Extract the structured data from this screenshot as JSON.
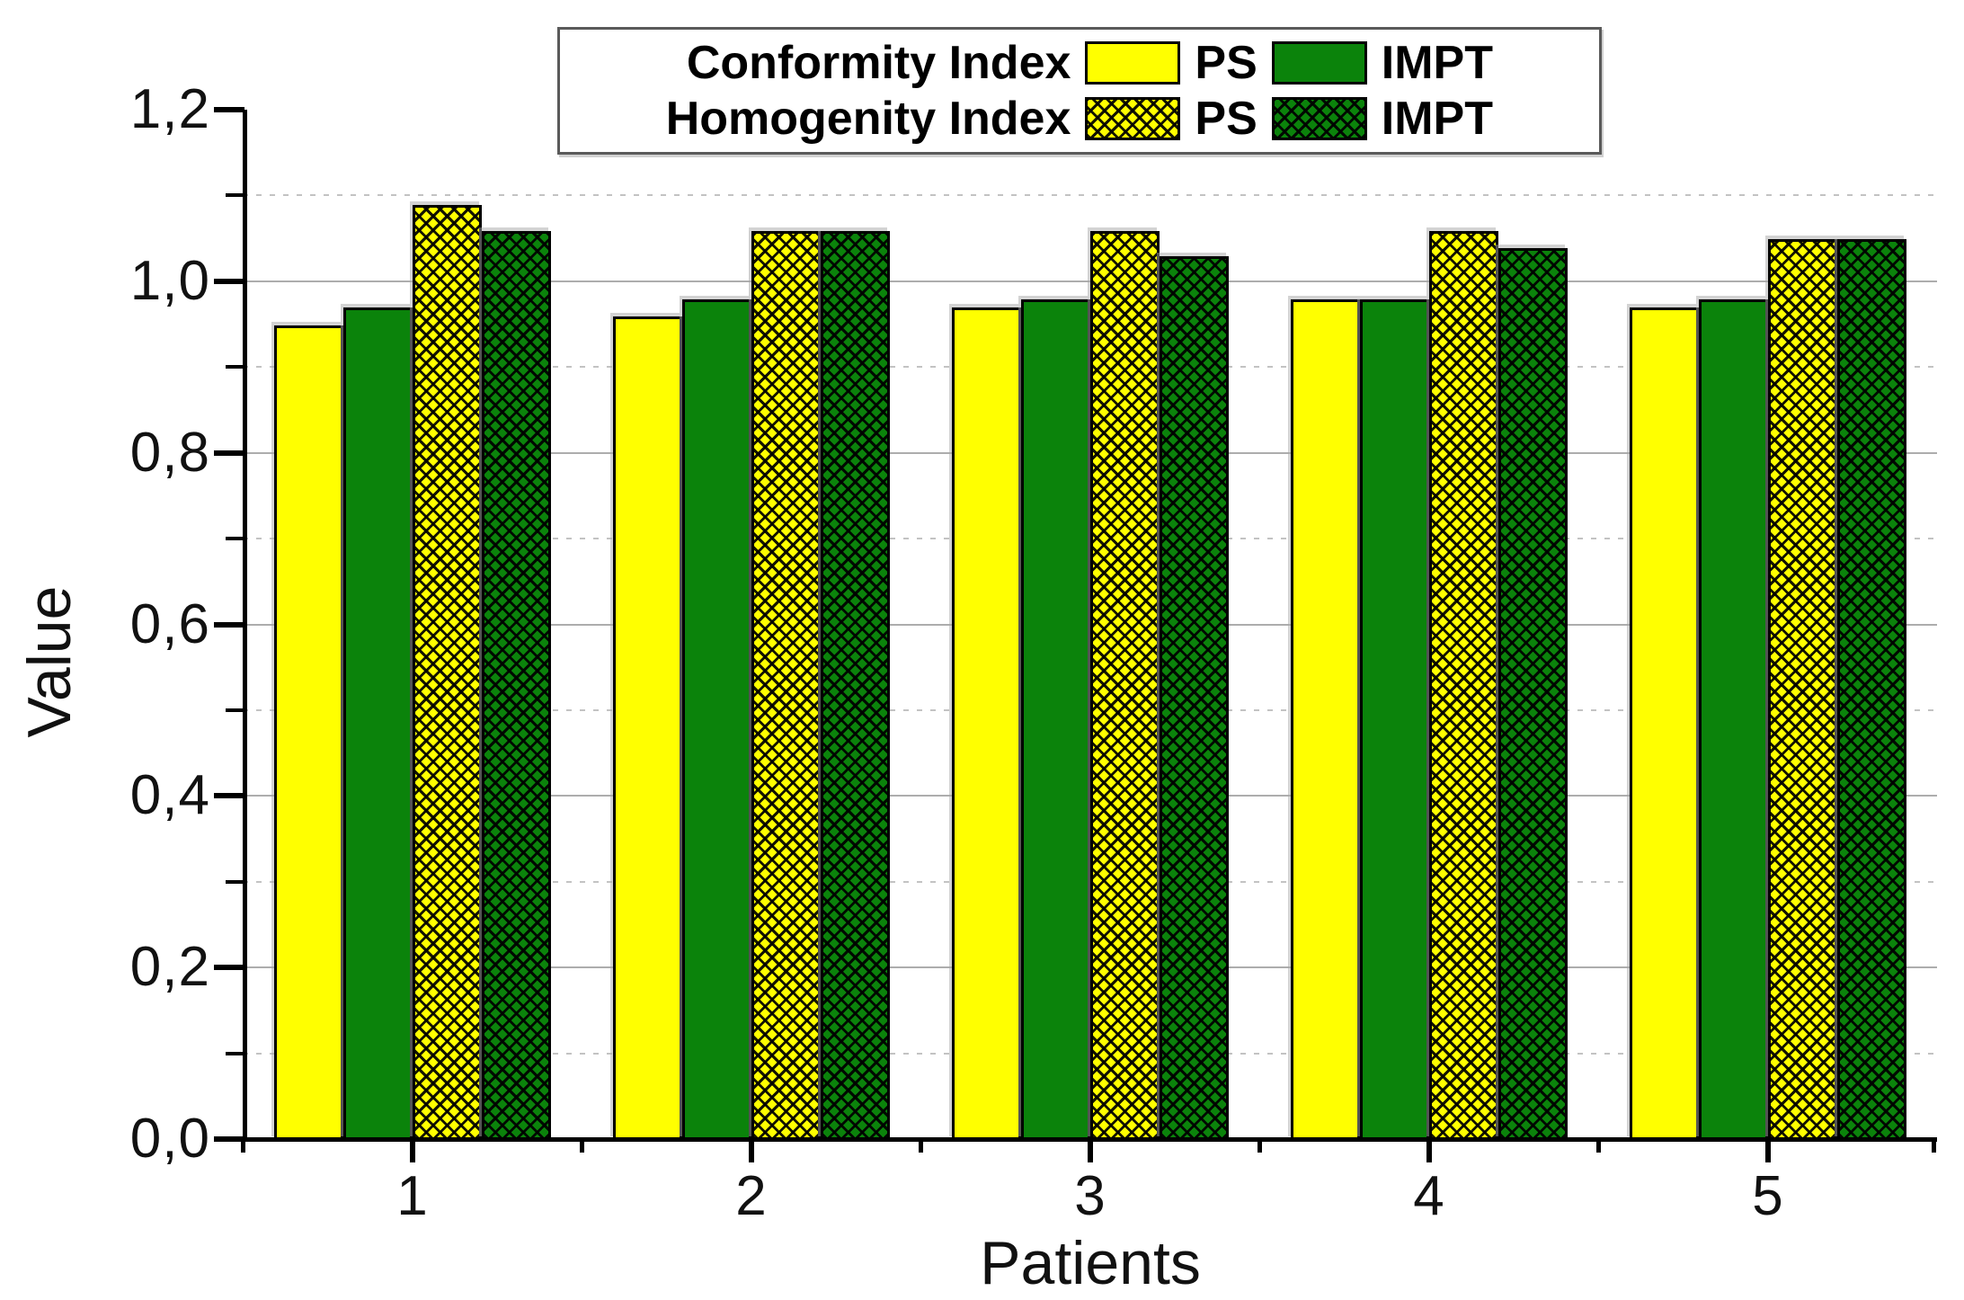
{
  "colors": {
    "ps_yellow": "#ffff00",
    "impt_green": "#0b830b",
    "axis": "#000000",
    "grid_major": "#adadad",
    "grid_minor": "#c3c3c3",
    "background": "#ffffff"
  },
  "legend": {
    "rows": [
      {
        "label": "Conformity Index",
        "entries": [
          {
            "swatch": "yellow-solid",
            "label": "PS"
          },
          {
            "swatch": "green-solid",
            "label": "IMPT"
          }
        ]
      },
      {
        "label": "Homogenity Index",
        "entries": [
          {
            "swatch": "yellow-crosshatch",
            "label": "PS"
          },
          {
            "swatch": "green-crosshatch",
            "label": "IMPT"
          }
        ]
      }
    ]
  },
  "chart_data": {
    "type": "bar",
    "title": "",
    "xlabel": "Patients",
    "ylabel": "Value",
    "categories": [
      "1",
      "2",
      "3",
      "4",
      "5"
    ],
    "series": [
      {
        "key": "conformity-ps",
        "name": "Conformity Index PS",
        "pattern": "solid",
        "color": "#ffff00",
        "values": [
          0.95,
          0.96,
          0.97,
          0.98,
          0.97
        ]
      },
      {
        "key": "conformity-impt",
        "name": "Conformity Index IMPT",
        "pattern": "solid",
        "color": "#0b830b",
        "values": [
          0.97,
          0.98,
          0.98,
          0.98,
          0.98
        ]
      },
      {
        "key": "homogenity-ps",
        "name": "Homogenity Index PS",
        "pattern": "crosshatch",
        "color": "#ffff00",
        "values": [
          1.09,
          1.06,
          1.06,
          1.06,
          1.05
        ]
      },
      {
        "key": "homogenity-impt",
        "name": "Homogenity Index IMPT",
        "pattern": "crosshatch",
        "color": "#0b830b",
        "values": [
          1.06,
          1.06,
          1.03,
          1.04,
          1.05
        ]
      }
    ],
    "ylim": [
      0,
      1.2
    ],
    "y_axis": {
      "label": "Value",
      "decimal_separator": ",",
      "major_ticks": [
        {
          "value": 0.0,
          "label": "0,0"
        },
        {
          "value": 0.2,
          "label": "0,2"
        },
        {
          "value": 0.4,
          "label": "0,4"
        },
        {
          "value": 0.6,
          "label": "0,6"
        },
        {
          "value": 0.8,
          "label": "0,8"
        },
        {
          "value": 1.0,
          "label": "1,0"
        },
        {
          "value": 1.2,
          "label": "1,2"
        }
      ],
      "minor_tick_values": [
        0.1,
        0.3,
        0.5,
        0.7,
        0.9,
        1.1
      ]
    },
    "x_axis": {
      "label": "Patients",
      "tick_labels": [
        "1",
        "2",
        "3",
        "4",
        "5"
      ]
    },
    "grid": {
      "major": "solid",
      "minor": "dotted",
      "legend_position": "top-center"
    }
  }
}
